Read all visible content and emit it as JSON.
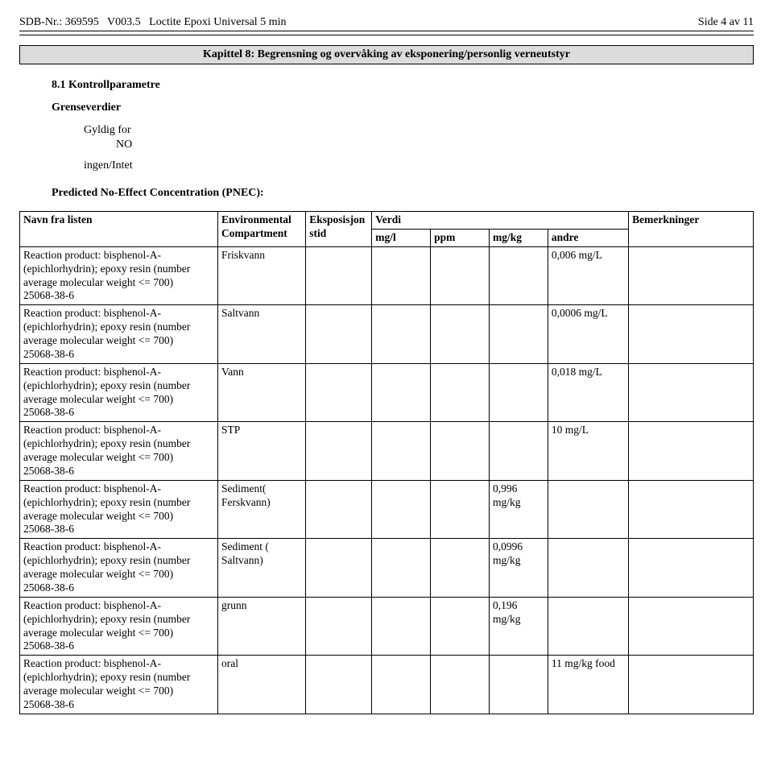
{
  "header": {
    "sdb_nr_label": "SDB-Nr.:",
    "sdb_nr": "369595",
    "version_label": "V003.5",
    "product_name": "Loctite Epoxi Universal 5 min",
    "page_label": "Side 4 av 11"
  },
  "section_title": "Kapittel 8: Begrensning og overvåking av eksponering/personlig verneutstyr",
  "kontroll": {
    "num_title": "8.1 Kontrollparametre",
    "grense": "Grenseverdier",
    "gyldig_for": "Gyldig for",
    "no": "NO",
    "ingen": "ingen/Intet",
    "pnec_title": "Predicted No-Effect Concentration (PNEC):"
  },
  "pnec_headers": {
    "name": "Navn fra listen",
    "env": "Environmental Compartment",
    "eksp": "Eksposisjonstid",
    "verdi": "Verdi",
    "mgl": "mg/l",
    "ppm": "ppm",
    "mgkg": "mg/kg",
    "andre": "andre",
    "bem": "Bemerkninger"
  },
  "substance_text": "Reaction product: bisphenol-A-(epichlorhydrin); epoxy resin (number average molecular weight <= 700)\n25068-38-6",
  "pnec_rows": [
    {
      "env": "Friskvann",
      "eksp": "",
      "mgl": "",
      "ppm": "",
      "mgkg": "",
      "andre": "0,006 mg/L",
      "bem": ""
    },
    {
      "env": "Saltvann",
      "eksp": "",
      "mgl": "",
      "ppm": "",
      "mgkg": "",
      "andre": "0,0006 mg/L",
      "bem": ""
    },
    {
      "env": "Vann",
      "eksp": "",
      "mgl": "",
      "ppm": "",
      "mgkg": "",
      "andre": "0,018 mg/L",
      "bem": ""
    },
    {
      "env": "STP",
      "eksp": "",
      "mgl": "",
      "ppm": "",
      "mgkg": "",
      "andre": "10 mg/L",
      "bem": ""
    },
    {
      "env": "Sediment( Ferskvann)",
      "eksp": "",
      "mgl": "",
      "ppm": "",
      "mgkg": "0,996 mg/kg",
      "andre": "",
      "bem": ""
    },
    {
      "env": "Sediment ( Saltvann)",
      "eksp": "",
      "mgl": "",
      "ppm": "",
      "mgkg": "0,0996 mg/kg",
      "andre": "",
      "bem": ""
    },
    {
      "env": "grunn",
      "eksp": "",
      "mgl": "",
      "ppm": "",
      "mgkg": "0,196 mg/kg",
      "andre": "",
      "bem": ""
    },
    {
      "env": "oral",
      "eksp": "",
      "mgl": "",
      "ppm": "",
      "mgkg": "",
      "andre": "11 mg/kg food",
      "bem": ""
    }
  ],
  "colors": {
    "section_bg": "#dcdcdc",
    "border": "#000000",
    "text": "#000000",
    "page_bg": "#ffffff"
  }
}
